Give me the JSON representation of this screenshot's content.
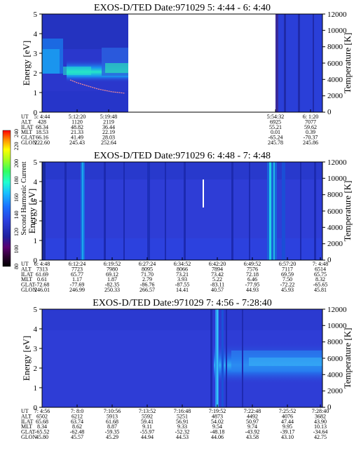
{
  "chart_data": [
    {
      "type": "heatmap",
      "title": "EXOS-D/TED   Date:971029  5: 4:44 - 6: 4:40",
      "ylabel": "Energy [eV]",
      "ylabel_right": "Temperature [K]",
      "ylim": [
        0,
        5
      ],
      "ylim_right": [
        0,
        12000
      ],
      "yticks": [
        "0",
        "1",
        "2",
        "3",
        "4",
        "5"
      ],
      "yticks_right": [
        "0",
        "2000",
        "4000",
        "6000",
        "8000",
        "10000",
        "12000"
      ],
      "data_gap": [
        "5:19:48",
        "5:54:32"
      ],
      "orbit_labels": [
        "UT",
        "ALT",
        "ILAT",
        "MLT",
        "GLAT",
        "GLON"
      ],
      "orbit_columns": [
        [
          "5: 4:44",
          "428",
          "68.34",
          "18.53",
          "66.16",
          "222.60"
        ],
        [
          "5:12:20",
          "1120",
          "48.82",
          "21.33",
          "41.49",
          "245.43"
        ],
        [
          "5:19:48",
          "2119",
          "36.44",
          "22.19",
          "28.03",
          "252.64"
        ],
        [
          "5:54:32",
          "6925",
          "55.21",
          "0.01",
          "-65.24",
          "245.78"
        ],
        [
          "6: 1:20",
          "7077",
          "59.62",
          "0.39",
          "-70.37",
          "245.86"
        ]
      ],
      "temperature_trace": [
        {
          "t": "5: 4:44",
          "K": 3200
        },
        {
          "t": "5: 8:00",
          "K": 3000
        },
        {
          "t": "5:10:00",
          "K": 2900
        },
        {
          "t": "5:12:00",
          "K": 2700
        },
        {
          "t": "5:14:00",
          "K": 2500
        },
        {
          "t": "5:16:00",
          "K": 2350
        },
        {
          "t": "5:18:00",
          "K": 2200
        },
        {
          "t": "5:19:48",
          "K": 2100
        }
      ]
    },
    {
      "type": "heatmap",
      "title": "EXOS-D/TED   Date:971029  6: 4:48 - 7: 4:48",
      "ylabel": "Energy [eV]",
      "ylabel_right": "Temperature [K]",
      "ylim": [
        0,
        5
      ],
      "ylim_right": [
        0,
        12000
      ],
      "yticks": [
        "0",
        "1",
        "2",
        "3",
        "4",
        "5"
      ],
      "yticks_right": [
        "0",
        "2000",
        "4000",
        "6000",
        "8000",
        "10000",
        "12000"
      ],
      "orbit_labels": [
        "UT",
        "ALT",
        "ILAT",
        "MLT",
        "GLAT",
        "GLON"
      ],
      "orbit_columns": [
        [
          "6: 4:48",
          "7313",
          "61.69",
          "0.61",
          "-72.68",
          "246.01"
        ],
        [
          "6:12:24",
          "7723",
          "65.77",
          "1.17",
          "-77.69",
          "246.99"
        ],
        [
          "6:19:52",
          "7980",
          "69.12",
          "1.87",
          "-82.35",
          "250.33"
        ],
        [
          "6:27:24",
          "8095",
          "71.70",
          "2.79",
          "-86.76",
          "266.57"
        ],
        [
          "6:34:52",
          "8066",
          "73.21",
          "3.93",
          "-87.55",
          "14.41"
        ],
        [
          "6:42:20",
          "7894",
          "73.42",
          "5.22",
          "-83.11",
          "40.57"
        ],
        [
          "6:49:52",
          "7576",
          "72.18",
          "6.46",
          "-77.95",
          "44.93"
        ],
        [
          "6:57:20",
          "7117",
          "69.59",
          "7.50",
          "-72.22",
          "45.93"
        ],
        [
          "7: 4:48",
          "6514",
          "65.75",
          "8.32",
          "-65.65",
          "45.81"
        ]
      ]
    },
    {
      "type": "heatmap",
      "title": "EXOS-D/TED   Date:971029  7: 4:56 - 7:28:40",
      "ylabel": "Energy [eV]",
      "ylabel_right": "Temperature [K]",
      "ylim": [
        0,
        5
      ],
      "ylim_right": [
        0,
        12000
      ],
      "yticks": [
        "0",
        "1",
        "2",
        "3",
        "4",
        "5"
      ],
      "yticks_right": [
        "0",
        "2000",
        "4000",
        "6000",
        "8000",
        "10000",
        "12000"
      ],
      "orbit_labels": [
        "UT",
        "ALT",
        "ILAT",
        "MLT",
        "GLAT",
        "GLON"
      ],
      "orbit_columns": [
        [
          "7: 4:56",
          "6502",
          "65.68",
          "8.34",
          "-65.52",
          "45.80"
        ],
        [
          "7: 8:0",
          "6212",
          "63.74",
          "8.62",
          "-62.48",
          "45.57"
        ],
        [
          "7:10:56",
          "5913",
          "61.68",
          "8.87",
          "-59.35",
          "45.29"
        ],
        [
          "7:13:52",
          "5592",
          "59.41",
          "9.11",
          "-55.97",
          "44.94"
        ],
        [
          "7:16:48",
          "5251",
          "56.91",
          "9.33",
          "-52.32",
          "44.53"
        ],
        [
          "7:19:52",
          "4873",
          "54.02",
          "9.54",
          "-48.18",
          "44.06"
        ],
        [
          "7:22:48",
          "4492",
          "50.97",
          "9.74",
          "-43.92",
          "43.58"
        ],
        [
          "7:25:52",
          "4076",
          "47.44",
          "9.95",
          "-39.17",
          "43.10"
        ],
        [
          "7:28:40",
          "3682",
          "43.90",
          "10.13",
          "-34.64",
          "42.75"
        ]
      ]
    }
  ],
  "colorbar": {
    "label": "Second Harmonic Current",
    "ticks": [
      "80",
      "100",
      "120",
      "140",
      "160",
      "180",
      "200",
      "220",
      "240"
    ]
  },
  "colors": {
    "background_blue": "#2e3dd6",
    "dark_blue": "#1a1aa8",
    "cyan": "#1ad0e8",
    "green": "#2aff8a",
    "temperature_trace": "#ff8080"
  }
}
